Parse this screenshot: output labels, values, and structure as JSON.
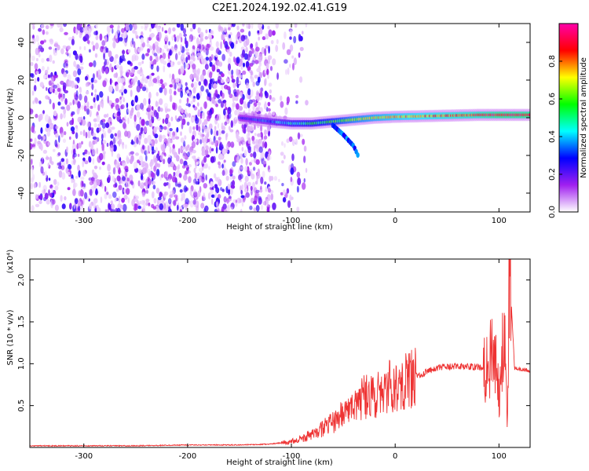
{
  "figure": {
    "title": "C2E1.2024.192.02.41.G19"
  },
  "chart_data": [
    {
      "type": "heatmap",
      "title": "C2E1.2024.192.02.41.G19",
      "xlabel": "Height of straight line (km)",
      "ylabel": "Frequency (Hz)",
      "xlim": [
        -352,
        130
      ],
      "ylim": [
        -50,
        50
      ],
      "x_ticks": [
        -300,
        -200,
        -100,
        0,
        100
      ],
      "x_tick_labels": [
        "-300",
        "-200",
        "-100",
        "0",
        "100"
      ],
      "y_ticks": [
        -40,
        -20,
        0,
        20,
        40
      ],
      "y_tick_labels": [
        "-40",
        "-20",
        "0",
        "20",
        "40"
      ],
      "colorbar": {
        "label": "Normalized spectral amplitude",
        "range": [
          0,
          1
        ],
        "ticks": [
          0.0,
          0.2,
          0.4,
          0.6,
          0.8
        ],
        "tick_labels": [
          "0.0",
          "0.2",
          "0.4",
          "0.6",
          "0.8"
        ],
        "colormap": [
          "#ffffff",
          "#a020f0",
          "#0000ff",
          "#00ffff",
          "#00ff00",
          "#ffff00",
          "#ff0000",
          "#ff00aa"
        ]
      },
      "noise_region_x_end": -120,
      "carrier_trace": [
        {
          "x": -150,
          "freq": 0,
          "amp": 0.25
        },
        {
          "x": -120,
          "freq": -2,
          "amp": 0.35
        },
        {
          "x": -100,
          "freq": -3,
          "amp": 0.45
        },
        {
          "x": -80,
          "freq": -3,
          "amp": 0.5
        },
        {
          "x": -60,
          "freq": -2,
          "amp": 0.55
        },
        {
          "x": -40,
          "freq": -1,
          "amp": 0.65
        },
        {
          "x": -20,
          "freq": 0,
          "amp": 0.7
        },
        {
          "x": 0,
          "freq": 0.5,
          "amp": 0.75
        },
        {
          "x": 40,
          "freq": 1,
          "amp": 0.8
        },
        {
          "x": 80,
          "freq": 1.5,
          "amp": 0.85
        },
        {
          "x": 100,
          "freq": 1.5,
          "amp": 0.9
        },
        {
          "x": 130,
          "freq": 1.5,
          "amp": 0.9
        }
      ],
      "branch_trace": [
        {
          "x": -60,
          "freq": -4
        },
        {
          "x": -50,
          "freq": -9
        },
        {
          "x": -40,
          "freq": -15
        },
        {
          "x": -35,
          "freq": -21
        }
      ]
    },
    {
      "type": "line",
      "xlabel": "Height of straight line (km)",
      "ylabel": "SNR (10 * v/v)",
      "y_multiplier_label": "(x10⁴)",
      "xlim": [
        -352,
        130
      ],
      "ylim": [
        0,
        2.25
      ],
      "x_ticks": [
        -300,
        -200,
        -100,
        0,
        100
      ],
      "x_tick_labels": [
        "-300",
        "-200",
        "-100",
        "0",
        "100"
      ],
      "y_ticks": [
        0.5,
        1.0,
        1.5,
        2.0
      ],
      "y_tick_labels": [
        "0.5",
        "1.0",
        "1.5",
        "2.0"
      ],
      "series": [
        {
          "color": "#ee3333",
          "x": [
            -352,
            -300,
            -250,
            -200,
            -150,
            -120,
            -100,
            -80,
            -60,
            -50,
            -40,
            -30,
            -20,
            -10,
            0,
            20,
            40,
            60,
            80,
            90,
            95,
            100,
            105,
            108,
            110,
            115,
            120,
            130
          ],
          "y": [
            0.02,
            0.02,
            0.02,
            0.03,
            0.03,
            0.04,
            0.07,
            0.15,
            0.3,
            0.4,
            0.5,
            0.6,
            0.6,
            0.7,
            0.75,
            0.85,
            0.95,
            0.97,
            0.96,
            0.95,
            1.3,
            0.6,
            1.6,
            0.2,
            2.2,
            0.95,
            0.93,
            0.92
          ]
        }
      ]
    }
  ]
}
